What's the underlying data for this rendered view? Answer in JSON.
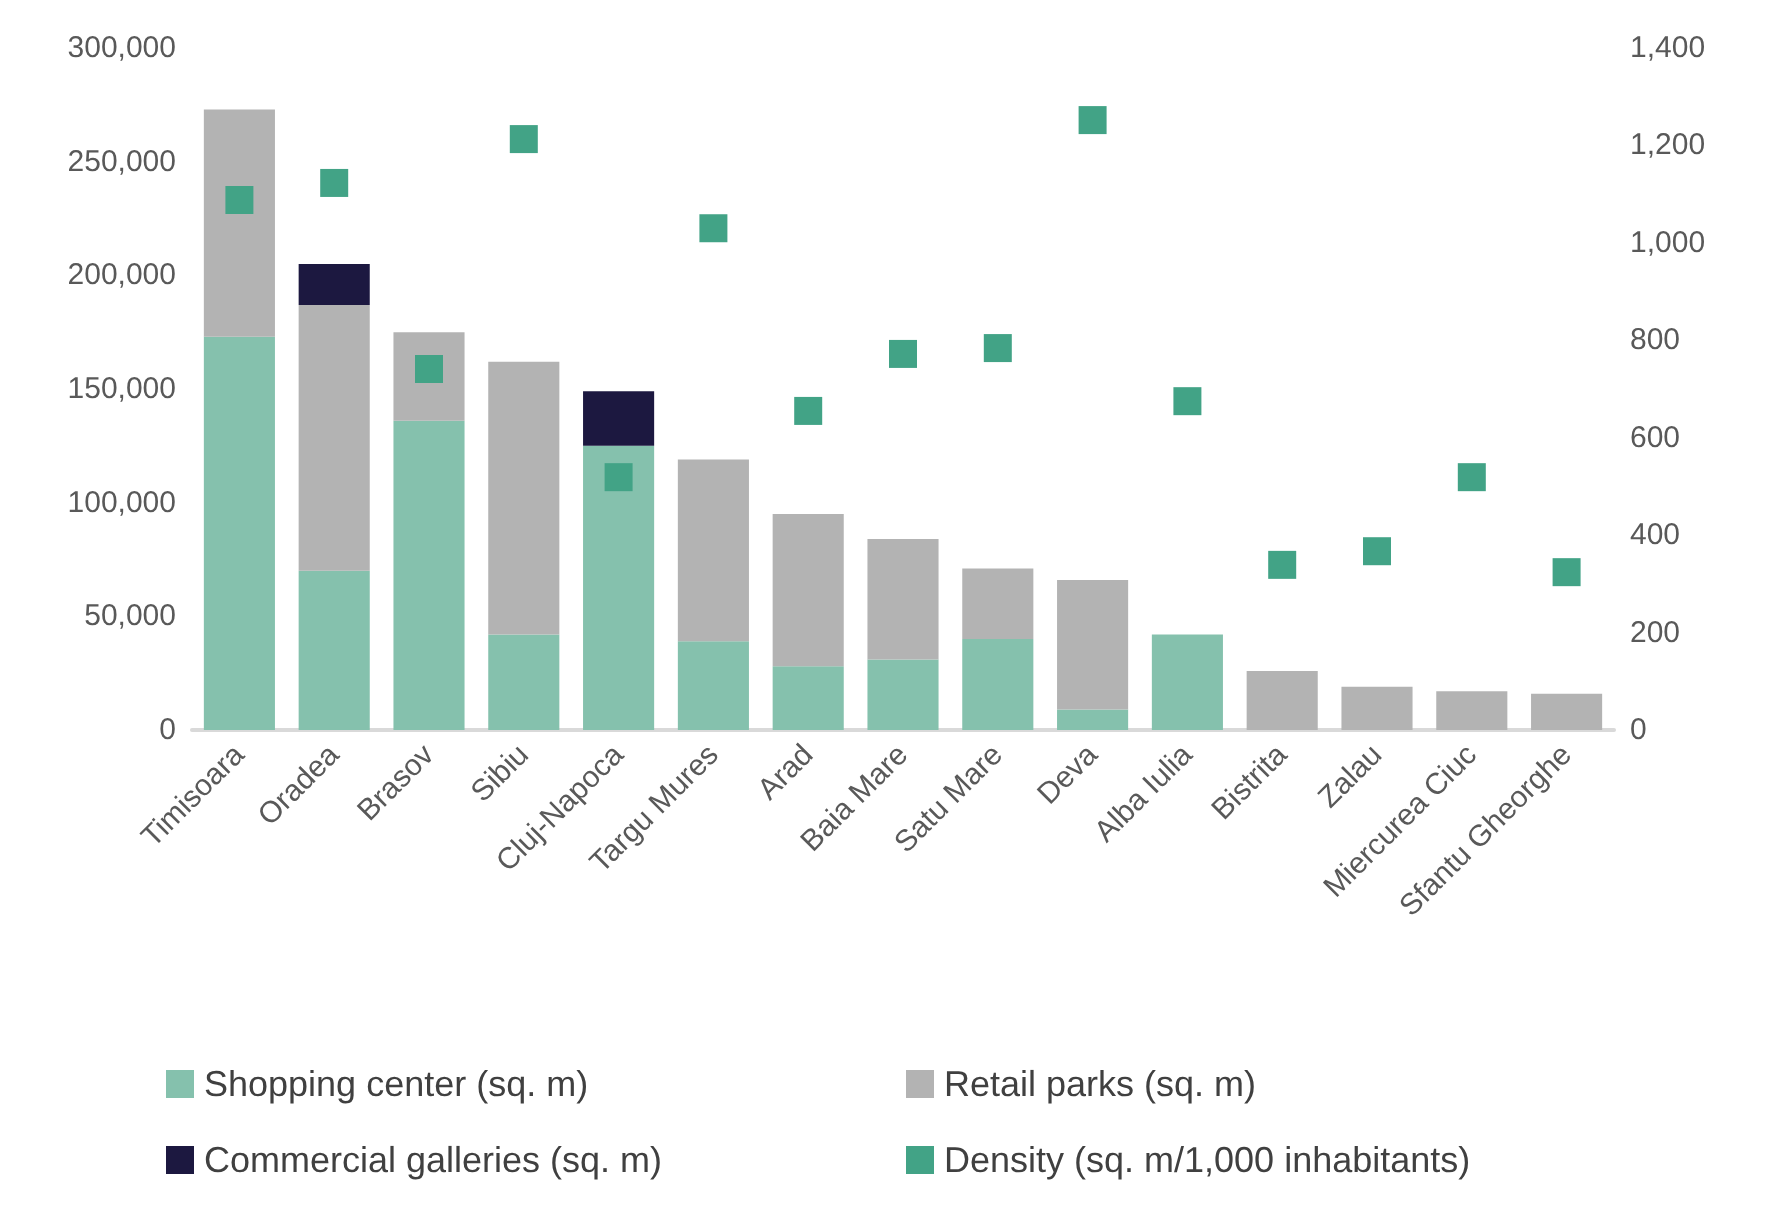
{
  "chart_data": {
    "type": "bar",
    "stacked": true,
    "categories": [
      "Timisoara",
      "Oradea",
      "Brasov",
      "Sibiu",
      "Cluj-Napoca",
      "Targu Mures",
      "Arad",
      "Baia Mare",
      "Satu Mare",
      "Deva",
      "Alba Iulia",
      "Bistrita",
      "Zalau",
      "Miercurea Ciuc",
      "Sfantu Gheorghe"
    ],
    "series": [
      {
        "name": "Shopping center (sq. m)",
        "color": "#85c1ad",
        "values": [
          173000,
          70000,
          136000,
          42000,
          125000,
          39000,
          28000,
          31000,
          40000,
          9000,
          42000,
          null,
          null,
          null,
          null
        ]
      },
      {
        "name": "Retail parks (sq. m)",
        "color": "#b3b3b3",
        "values": [
          100000,
          117000,
          39000,
          120000,
          null,
          80000,
          67000,
          53000,
          31000,
          57000,
          null,
          26000,
          19000,
          17000,
          16000
        ]
      },
      {
        "name": "Commercial galleries (sq. m)",
        "color": "#1c1840",
        "values": [
          null,
          18000,
          null,
          null,
          24000,
          null,
          null,
          null,
          null,
          null,
          null,
          null,
          null,
          null,
          null
        ]
      },
      {
        "name": "Density (sq. m/1,000 inhabitants)",
        "type": "scatter",
        "axis": "y2",
        "marker": "square",
        "color": "#42a386",
        "values": [
          1088,
          1123,
          741,
          1213,
          519,
          1030,
          655,
          772,
          784,
          1252,
          675,
          339,
          367,
          519,
          324
        ]
      }
    ],
    "ylim": [
      0,
      300000
    ],
    "yticks": [
      0,
      {
        "value": 50000,
        "label": "50,000"
      },
      {
        "value": 100000,
        "label": "100,000"
      },
      {
        "value": 150000,
        "label": "150,000"
      },
      {
        "value": 200000,
        "label": "200,000"
      },
      {
        "value": 250000,
        "label": "250,000"
      },
      {
        "value": 300000,
        "label": "300,000"
      }
    ],
    "y2lim": [
      0,
      1400
    ],
    "y2ticks": [
      0,
      200,
      400,
      600,
      800,
      {
        "value": 1000,
        "label": "1,000"
      },
      {
        "value": 1200,
        "label": "1,200"
      },
      {
        "value": 1400,
        "label": "1,400"
      }
    ],
    "grid": false,
    "legend": "bottom"
  }
}
